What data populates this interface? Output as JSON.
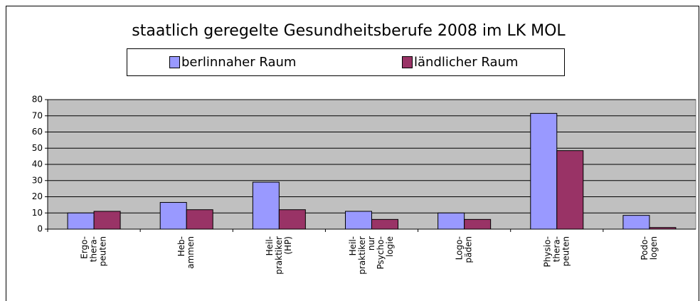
{
  "chart_data": {
    "type": "bar",
    "title": "staatlich geregelte Gesundheitsberufe 2008 im LK MOL",
    "categories": [
      [
        "Ergo-",
        "thera-",
        "peuten"
      ],
      [
        "Heb-",
        "ammen"
      ],
      [
        "Heil-",
        "praktiker",
        "(HP)"
      ],
      [
        "Heil-",
        "praktiker",
        "nur",
        "Psycho-",
        "logie"
      ],
      [
        "Logo-",
        "päden"
      ],
      [
        "Physio-",
        "thera-",
        "peuten"
      ],
      [
        "Podo-",
        "logen"
      ]
    ],
    "series": [
      {
        "name": "berlinnaher Raum",
        "color": "#9999ff",
        "values": [
          10,
          16.5,
          29,
          11,
          10,
          71.5,
          8.5
        ]
      },
      {
        "name": "ländlicher Raum",
        "color": "#993366",
        "values": [
          11,
          12,
          12,
          6,
          6,
          48.5,
          1
        ]
      }
    ],
    "ylim": [
      0,
      80
    ],
    "yticks": [
      0,
      10,
      20,
      30,
      40,
      50,
      60,
      70,
      80
    ],
    "grid": true,
    "legend": "top"
  }
}
